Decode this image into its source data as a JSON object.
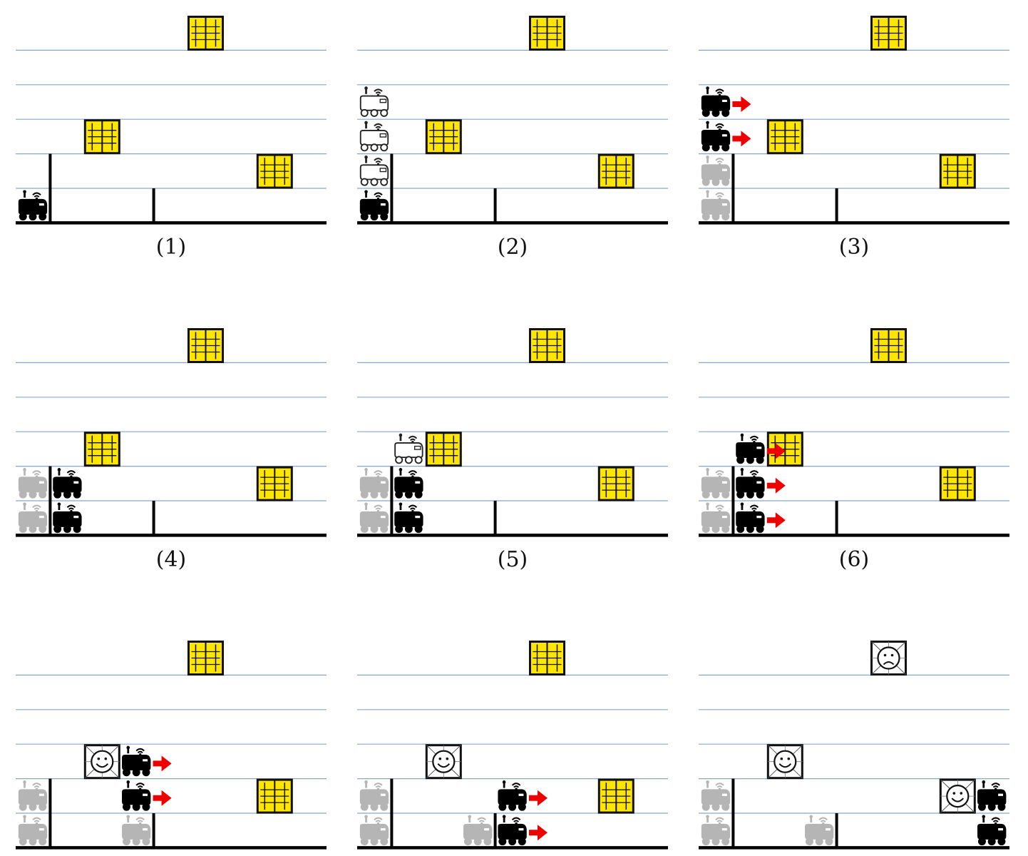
{
  "panels": [
    {
      "label": "(1)",
      "windows": [
        {
          "row": 0,
          "col": 5,
          "state": "closed"
        },
        {
          "row": 3,
          "col": 2,
          "state": "closed"
        },
        {
          "row": 4,
          "col": 7,
          "state": "closed"
        }
      ],
      "robots": [
        {
          "row": 5,
          "col": 0,
          "style": "black"
        }
      ],
      "arrows": []
    },
    {
      "label": "(2)",
      "windows": [
        {
          "row": 0,
          "col": 5,
          "state": "closed"
        },
        {
          "row": 3,
          "col": 2,
          "state": "closed"
        },
        {
          "row": 4,
          "col": 7,
          "state": "closed"
        }
      ],
      "robots": [
        {
          "row": 2,
          "col": 0,
          "style": "outline"
        },
        {
          "row": 3,
          "col": 0,
          "style": "outline"
        },
        {
          "row": 4,
          "col": 0,
          "style": "outline"
        },
        {
          "row": 5,
          "col": 0,
          "style": "black"
        }
      ],
      "arrows": []
    },
    {
      "label": "(3)",
      "windows": [
        {
          "row": 0,
          "col": 5,
          "state": "closed"
        },
        {
          "row": 3,
          "col": 2,
          "state": "closed"
        },
        {
          "row": 4,
          "col": 7,
          "state": "closed"
        }
      ],
      "robots": [
        {
          "row": 2,
          "col": 0,
          "style": "black"
        },
        {
          "row": 3,
          "col": 0,
          "style": "black"
        },
        {
          "row": 4,
          "col": 0,
          "style": "gray"
        },
        {
          "row": 5,
          "col": 0,
          "style": "gray"
        }
      ],
      "arrows": [
        {
          "row": 2,
          "col": 0
        },
        {
          "row": 3,
          "col": 0
        }
      ]
    },
    {
      "label": "(4)",
      "windows": [
        {
          "row": 0,
          "col": 5,
          "state": "closed"
        },
        {
          "row": 3,
          "col": 2,
          "state": "closed"
        },
        {
          "row": 4,
          "col": 7,
          "state": "closed"
        }
      ],
      "robots": [
        {
          "row": 4,
          "col": 0,
          "style": "gray"
        },
        {
          "row": 5,
          "col": 0,
          "style": "gray"
        },
        {
          "row": 4,
          "col": 1,
          "style": "black"
        },
        {
          "row": 5,
          "col": 1,
          "style": "black"
        }
      ],
      "arrows": []
    },
    {
      "label": "(5)",
      "windows": [
        {
          "row": 0,
          "col": 5,
          "state": "closed"
        },
        {
          "row": 3,
          "col": 2,
          "state": "closed"
        },
        {
          "row": 4,
          "col": 7,
          "state": "closed"
        }
      ],
      "robots": [
        {
          "row": 4,
          "col": 0,
          "style": "gray"
        },
        {
          "row": 5,
          "col": 0,
          "style": "gray"
        },
        {
          "row": 3,
          "col": 1,
          "style": "outline"
        },
        {
          "row": 4,
          "col": 1,
          "style": "black"
        },
        {
          "row": 5,
          "col": 1,
          "style": "black"
        }
      ],
      "arrows": []
    },
    {
      "label": "(6)",
      "windows": [
        {
          "row": 0,
          "col": 5,
          "state": "closed"
        },
        {
          "row": 3,
          "col": 2,
          "state": "closed"
        },
        {
          "row": 4,
          "col": 7,
          "state": "closed"
        }
      ],
      "robots": [
        {
          "row": 4,
          "col": 0,
          "style": "gray"
        },
        {
          "row": 5,
          "col": 0,
          "style": "gray"
        },
        {
          "row": 3,
          "col": 1,
          "style": "black"
        },
        {
          "row": 4,
          "col": 1,
          "style": "black"
        },
        {
          "row": 5,
          "col": 1,
          "style": "black"
        }
      ],
      "arrows": [
        {
          "row": 3,
          "col": 1
        },
        {
          "row": 4,
          "col": 1
        },
        {
          "row": 5,
          "col": 1
        }
      ]
    },
    {
      "label": "",
      "windows": [
        {
          "row": 0,
          "col": 5,
          "state": "closed"
        },
        {
          "row": 3,
          "col": 2,
          "state": "happy"
        },
        {
          "row": 4,
          "col": 7,
          "state": "closed"
        }
      ],
      "robots": [
        {
          "row": 4,
          "col": 0,
          "style": "gray"
        },
        {
          "row": 5,
          "col": 0,
          "style": "gray"
        },
        {
          "row": 5,
          "col": 3,
          "style": "gray"
        },
        {
          "row": 3,
          "col": 3,
          "style": "black"
        },
        {
          "row": 4,
          "col": 3,
          "style": "black"
        }
      ],
      "arrows": [
        {
          "row": 3,
          "col": 3
        },
        {
          "row": 4,
          "col": 3
        }
      ]
    },
    {
      "label": "",
      "windows": [
        {
          "row": 0,
          "col": 5,
          "state": "closed"
        },
        {
          "row": 3,
          "col": 2,
          "state": "happy"
        },
        {
          "row": 4,
          "col": 7,
          "state": "closed"
        }
      ],
      "robots": [
        {
          "row": 4,
          "col": 0,
          "style": "gray"
        },
        {
          "row": 5,
          "col": 0,
          "style": "gray"
        },
        {
          "row": 5,
          "col": 3,
          "style": "gray"
        },
        {
          "row": 4,
          "col": 4,
          "style": "black"
        },
        {
          "row": 5,
          "col": 4,
          "style": "black"
        }
      ],
      "arrows": [
        {
          "row": 4,
          "col": 4
        },
        {
          "row": 5,
          "col": 4
        }
      ]
    },
    {
      "label": "",
      "windows": [
        {
          "row": 0,
          "col": 5,
          "state": "sad"
        },
        {
          "row": 3,
          "col": 2,
          "state": "happy"
        },
        {
          "row": 4,
          "col": 7,
          "state": "happy"
        }
      ],
      "robots": [
        {
          "row": 4,
          "col": 0,
          "style": "gray"
        },
        {
          "row": 5,
          "col": 0,
          "style": "gray"
        },
        {
          "row": 5,
          "col": 3,
          "style": "gray"
        },
        {
          "row": 4,
          "col": 8,
          "style": "black"
        },
        {
          "row": 5,
          "col": 8,
          "style": "black"
        }
      ],
      "arrows": []
    }
  ]
}
